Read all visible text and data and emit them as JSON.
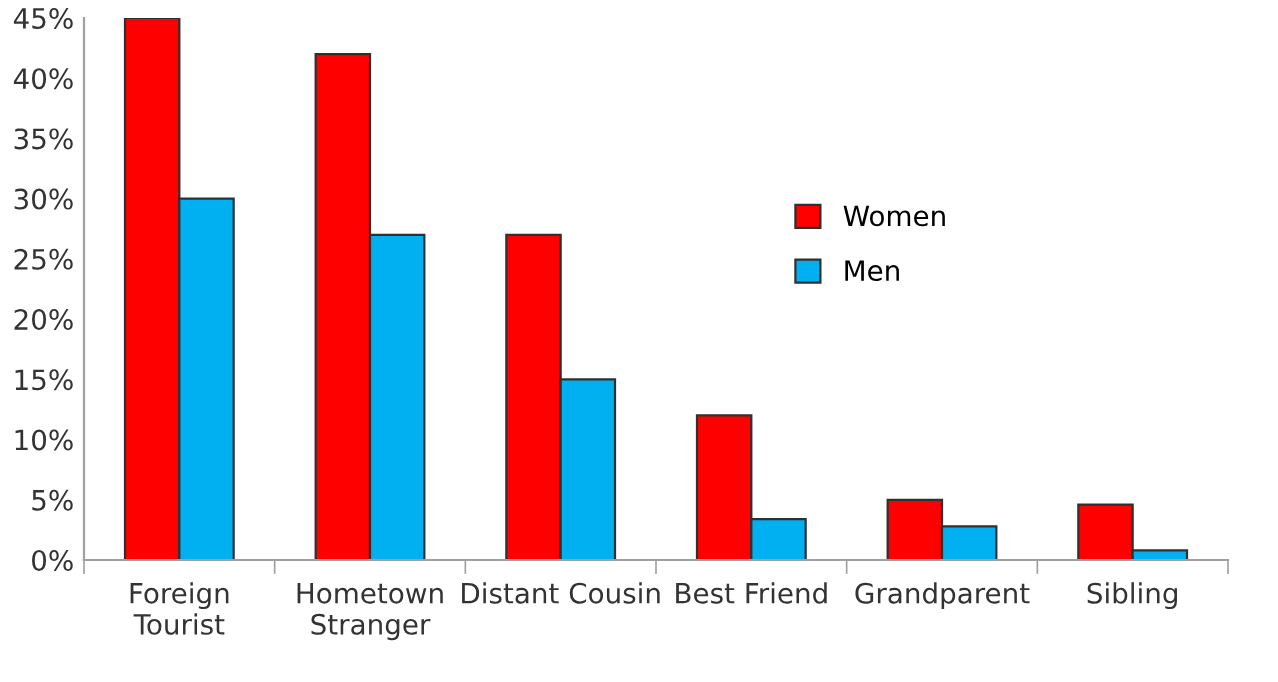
{
  "chart_data": {
    "type": "bar",
    "categories": [
      "Foreign\nTourist",
      "Hometown\nStranger",
      "Distant Cousin",
      "Best Friend",
      "Grandparent",
      "Sibling"
    ],
    "series": [
      {
        "name": "Women",
        "color": "#ff0000",
        "values": [
          45,
          42,
          27,
          12,
          5,
          4.6
        ]
      },
      {
        "name": "Men",
        "color": "#00b0f0",
        "values": [
          30,
          27,
          15,
          3.4,
          2.8,
          0.8
        ]
      }
    ],
    "ylim": [
      0,
      45
    ],
    "yticks": [
      {
        "value": 0,
        "label": "0%"
      },
      {
        "value": 5,
        "label": "5%"
      },
      {
        "value": 10,
        "label": "10%"
      },
      {
        "value": 15,
        "label": "15%"
      },
      {
        "value": 20,
        "label": "20%"
      },
      {
        "value": 25,
        "label": "25%"
      },
      {
        "value": 30,
        "label": "30%"
      },
      {
        "value": 35,
        "label": "35%"
      },
      {
        "value": 40,
        "label": "40%"
      },
      {
        "value": 45,
        "label": "45%"
      }
    ],
    "grid": false,
    "legend": "right"
  }
}
